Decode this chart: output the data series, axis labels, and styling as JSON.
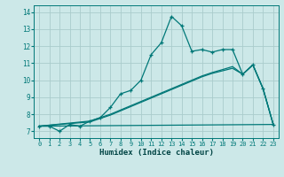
{
  "xlabel": "Humidex (Indice chaleur)",
  "bg_color": "#cce8e8",
  "grid_color": "#aacccc",
  "line_color": "#007878",
  "xlim": [
    -0.5,
    23.5
  ],
  "ylim": [
    6.6,
    14.4
  ],
  "xticks": [
    0,
    1,
    2,
    3,
    4,
    5,
    6,
    7,
    8,
    9,
    10,
    11,
    12,
    13,
    14,
    15,
    16,
    17,
    18,
    19,
    20,
    21,
    22,
    23
  ],
  "yticks": [
    7,
    8,
    9,
    10,
    11,
    12,
    13,
    14
  ],
  "series1_x": [
    0,
    1,
    2,
    3,
    4,
    5,
    6,
    7,
    8,
    9,
    10,
    11,
    12,
    13,
    14,
    15,
    16,
    17,
    18,
    19,
    20,
    21,
    22,
    23
  ],
  "series1_y": [
    7.3,
    7.3,
    7.0,
    7.4,
    7.3,
    7.6,
    7.8,
    8.4,
    9.2,
    9.4,
    10.0,
    11.5,
    12.2,
    13.75,
    13.2,
    11.7,
    11.8,
    11.65,
    11.8,
    11.8,
    10.35,
    10.9,
    9.5,
    7.4
  ],
  "series2_x": [
    0,
    23
  ],
  "series2_y": [
    7.3,
    7.4
  ],
  "series3_x": [
    0,
    5,
    6,
    7,
    8,
    9,
    10,
    11,
    12,
    13,
    14,
    15,
    16,
    17,
    18,
    19,
    20,
    21,
    22,
    23
  ],
  "series3_y": [
    7.3,
    7.55,
    7.75,
    7.95,
    8.2,
    8.45,
    8.7,
    8.95,
    9.2,
    9.45,
    9.7,
    9.95,
    10.2,
    10.4,
    10.55,
    10.7,
    10.35,
    10.9,
    9.5,
    7.4
  ],
  "series4_x": [
    0,
    5,
    6,
    7,
    8,
    9,
    10,
    11,
    12,
    13,
    14,
    15,
    16,
    17,
    18,
    19,
    20,
    21,
    22,
    23
  ],
  "series4_y": [
    7.3,
    7.6,
    7.8,
    8.0,
    8.25,
    8.5,
    8.75,
    9.0,
    9.25,
    9.5,
    9.75,
    10.0,
    10.25,
    10.45,
    10.62,
    10.8,
    10.35,
    10.9,
    9.5,
    7.4
  ]
}
